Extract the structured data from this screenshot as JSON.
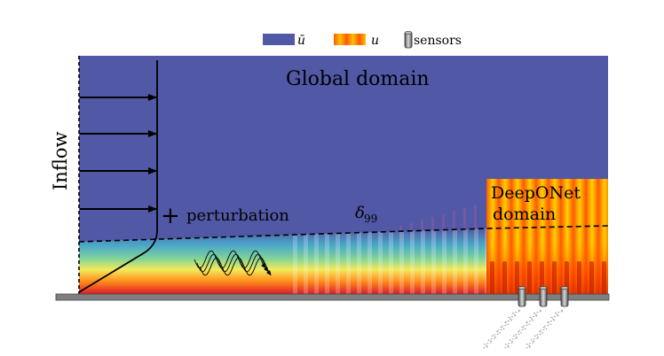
{
  "legend": {
    "mean_symbol": "ū",
    "perturb_symbol": "u",
    "sensors_label": "sensors"
  },
  "labels": {
    "global_domain": "Global domain",
    "inflow": "Inflow",
    "perturbation": "perturbation",
    "plus": "+",
    "delta_base": "δ",
    "delta_sub": "99",
    "deeponet_line1": "DeepONet",
    "deeponet_line2": "domain"
  },
  "colors": {
    "mean_flow": "#5158a6",
    "deeponet_low": "#ff4a00",
    "deeponet_high": "#ffd000",
    "wall": "#7f7f7f"
  },
  "icons": {
    "sensor": "sensor-cylinder-icon",
    "arrow": "arrow-right-icon"
  }
}
